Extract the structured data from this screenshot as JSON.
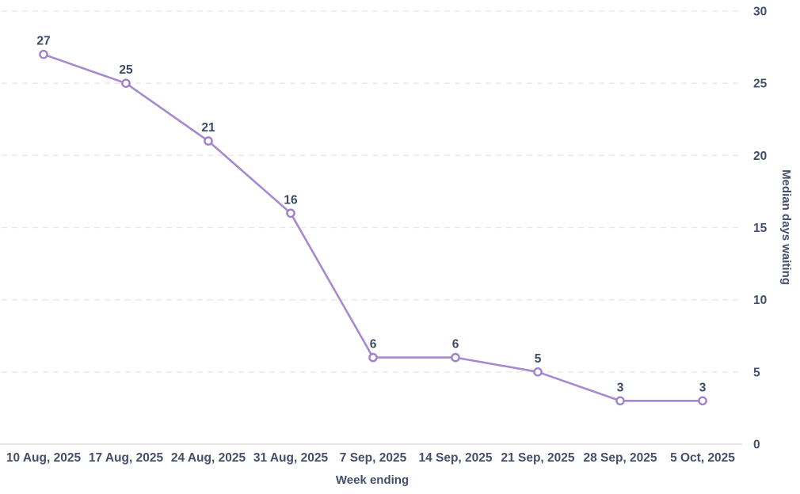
{
  "chart_data": {
    "type": "line",
    "title": "",
    "categories": [
      "10 Aug, 2025",
      "17 Aug, 2025",
      "24 Aug, 2025",
      "31 Aug, 2025",
      "7 Sep, 2025",
      "14 Sep, 2025",
      "21 Sep, 2025",
      "28 Sep, 2025",
      "5 Oct, 2025"
    ],
    "values": [
      27,
      25,
      21,
      16,
      6,
      6,
      5,
      3,
      3
    ],
    "xlabel": "Week ending",
    "ylabel": "Median days waiting",
    "ylim": [
      0,
      30
    ],
    "ytick_step": 5,
    "yticks": [
      0,
      5,
      10,
      15,
      20,
      25,
      30
    ],
    "grid": "horizontal-dashed",
    "legend": "none",
    "data_labels": "above-points",
    "colors": {
      "line": "#a689d0",
      "marker_ring": "#a080cc",
      "marker_fill": "#ffffff",
      "text": "#44506b",
      "gridline": "#e7e7e7",
      "axis_line": "#dedede",
      "background": "#ffffff"
    }
  }
}
